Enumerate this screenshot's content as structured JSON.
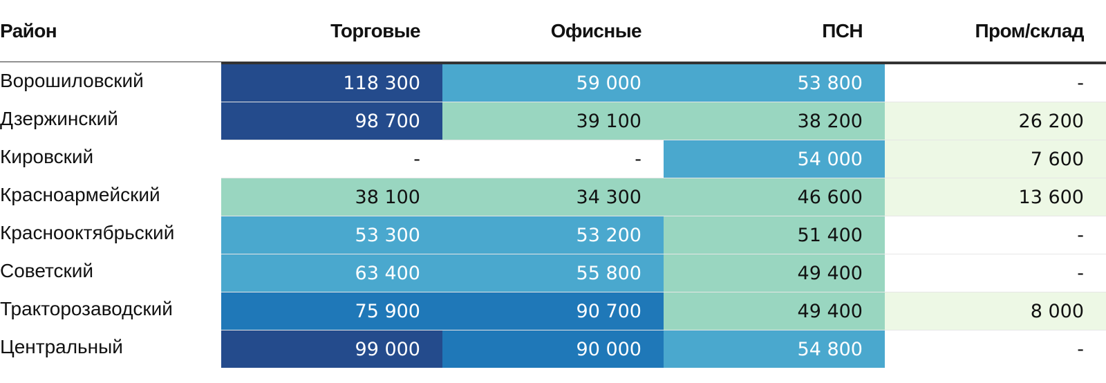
{
  "chart_data": {
    "type": "table",
    "columns": [
      "Район",
      "Торговые",
      "Офисные",
      "ПСН",
      "Пром/склад"
    ],
    "rows": [
      {
        "district": "Ворошиловский",
        "values": [
          "118 300",
          "59 000",
          "53 800",
          "-"
        ],
        "numeric": [
          118300,
          59000,
          53800,
          null
        ]
      },
      {
        "district": "Дзержинский",
        "values": [
          "98 700",
          "39 100",
          "38 200",
          "26 200"
        ],
        "numeric": [
          98700,
          39100,
          38200,
          26200
        ]
      },
      {
        "district": "Кировский",
        "values": [
          "-",
          "-",
          "54 000",
          "7 600"
        ],
        "numeric": [
          null,
          null,
          54000,
          7600
        ]
      },
      {
        "district": "Красноармейский",
        "values": [
          "38 100",
          "34 300",
          "46 600",
          "13 600"
        ],
        "numeric": [
          38100,
          34300,
          46600,
          13600
        ]
      },
      {
        "district": "Краснооктябрьский",
        "values": [
          "53 300",
          "53 200",
          "51 400",
          "-"
        ],
        "numeric": [
          53300,
          53200,
          51400,
          null
        ]
      },
      {
        "district": "Советский",
        "values": [
          "63 400",
          "55 800",
          "49 400",
          "-"
        ],
        "numeric": [
          63400,
          55800,
          49400,
          null
        ]
      },
      {
        "district": "Тракторозаводский",
        "values": [
          "75 900",
          "90 700",
          "49 400",
          "8 000"
        ],
        "numeric": [
          75900,
          90700,
          49400,
          8000
        ]
      },
      {
        "district": "Центральный",
        "values": [
          "99 000",
          "90 000",
          "54 800",
          "-"
        ],
        "numeric": [
          99000,
          90000,
          54800,
          null
        ]
      }
    ],
    "color_scale": [
      {
        "min": 0,
        "max": 30000,
        "color": "#edf8e5",
        "text_color": "#111111"
      },
      {
        "min": 30000,
        "max": 52000,
        "color": "#99d6c0",
        "text_color": "#111111"
      },
      {
        "min": 52000,
        "max": 70000,
        "color": "#4aa8ce",
        "text_color": "#ffffff"
      },
      {
        "min": 70000,
        "max": 95000,
        "color": "#1f78b8",
        "text_color": "#ffffff"
      },
      {
        "min": 95000,
        "max": 200000,
        "color": "#244b8c",
        "text_color": "#ffffff"
      }
    ],
    "empty_color": "#ffffff"
  }
}
